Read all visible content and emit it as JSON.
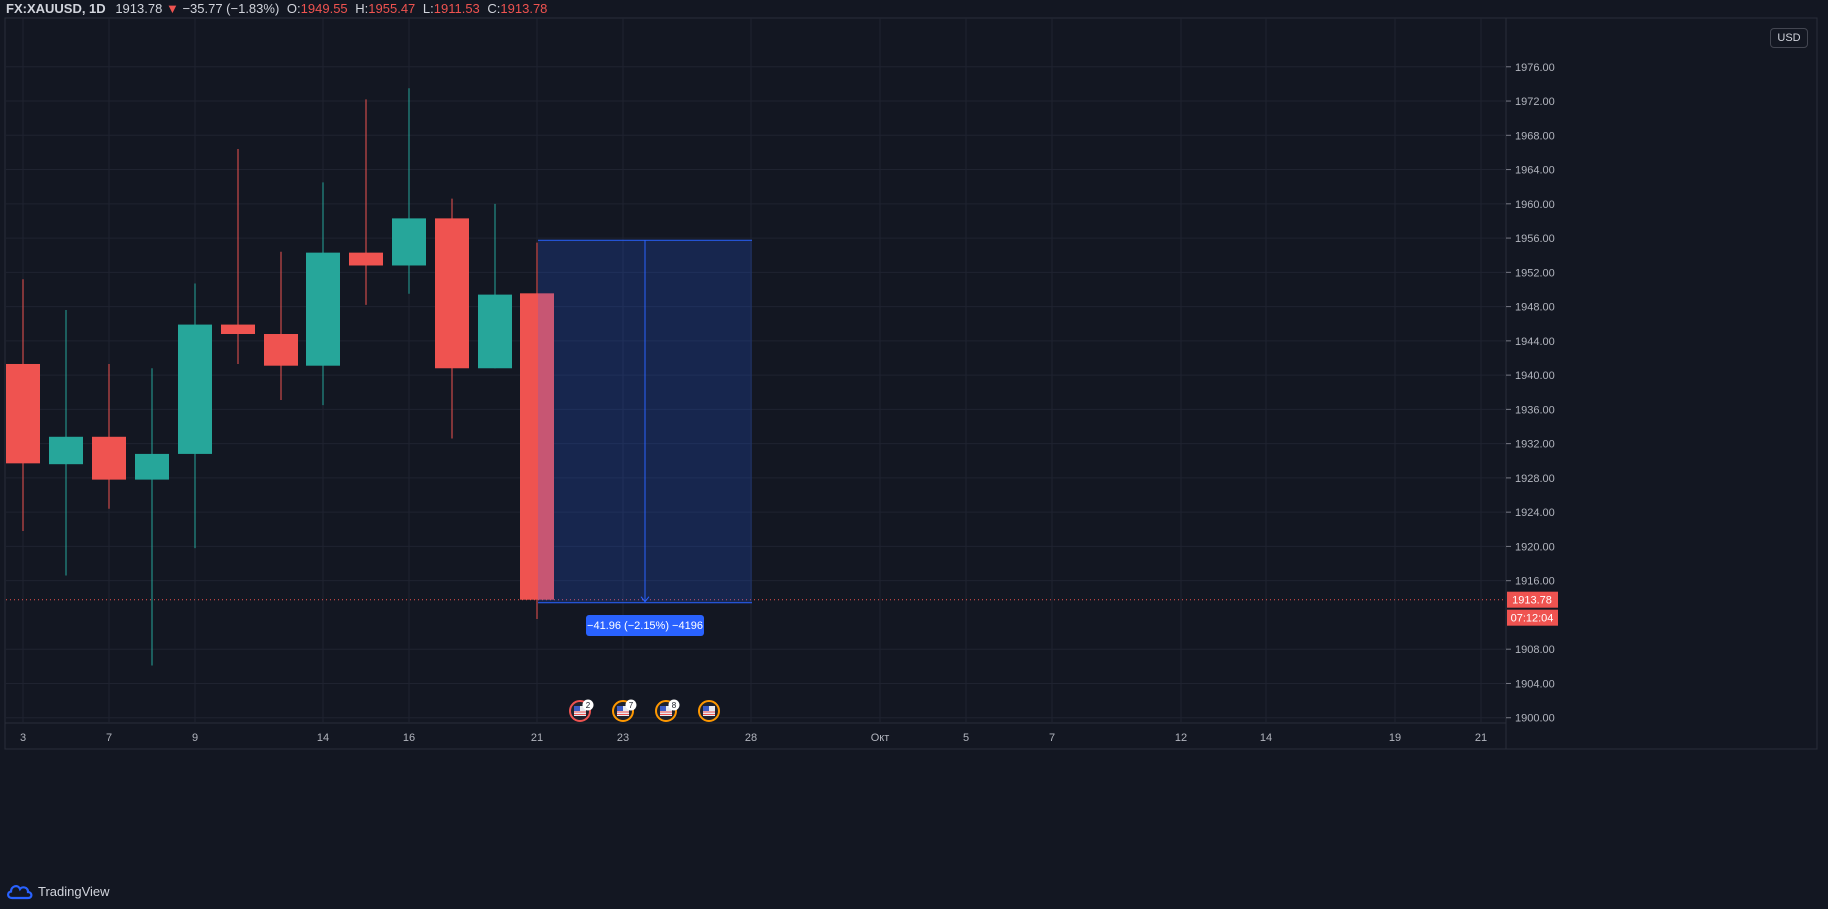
{
  "header": {
    "symbol": "FX:XAUUSD, 1D",
    "last": "1913.78",
    "change_arrow": "▼",
    "change": "−35.77 (−1.83%)",
    "o_label": "O:",
    "o_value": "1949.55",
    "h_label": "H:",
    "h_value": "1955.47",
    "l_label": "L:",
    "l_value": "1911.53",
    "c_label": "C:",
    "c_value": "1913.78"
  },
  "currency_badge": "USD",
  "brand": "TradingView",
  "price_axis": {
    "ticks": [
      "1976.00",
      "1972.00",
      "1968.00",
      "1964.00",
      "1960.00",
      "1956.00",
      "1952.00",
      "1948.00",
      "1944.00",
      "1940.00",
      "1936.00",
      "1932.00",
      "1928.00",
      "1924.00",
      "1920.00",
      "1916.00",
      "1908.00",
      "1904.00",
      "1900.00"
    ],
    "current_price_label": "1913.78",
    "countdown_label": "07:12:04"
  },
  "time_axis": {
    "labels": [
      "3",
      "7",
      "9",
      "14",
      "16",
      "21",
      "23",
      "28",
      "Окт",
      "5",
      "7",
      "12",
      "14",
      "19",
      "21"
    ]
  },
  "measure_tool": {
    "from": 1955.74,
    "to": 1913.78,
    "label": "−41.96 (−2.15%) −4196"
  },
  "events": [
    {
      "icon": "us-flag-event-icon",
      "count": "2",
      "ring": "#ef5350"
    },
    {
      "icon": "us-flag-event-icon",
      "count": "7",
      "ring": "#ff9800"
    },
    {
      "icon": "us-flag-event-icon",
      "count": "8",
      "ring": "#ff9800"
    },
    {
      "icon": "us-flag-event-icon",
      "count": "",
      "ring": "#ff9800"
    }
  ],
  "colors": {
    "background": "#131722",
    "up": "#26a69a",
    "down": "#ef5350",
    "grid": "#1f2330",
    "axis_text": "#b2b5be",
    "measure": "#2962ff"
  },
  "chart_data": {
    "type": "candlestick",
    "ylim": [
      1899.5,
      1980.0
    ],
    "candles": [
      {
        "date": "Sep 3",
        "open": 1941.3,
        "high": 1951.2,
        "low": 1921.8,
        "close": 1929.7
      },
      {
        "date": "Sep 4",
        "open": 1929.6,
        "high": 1947.6,
        "low": 1916.6,
        "close": 1932.8
      },
      {
        "date": "Sep 7",
        "open": 1932.8,
        "high": 1941.3,
        "low": 1924.4,
        "close": 1927.8
      },
      {
        "date": "Sep 8",
        "open": 1927.8,
        "high": 1940.8,
        "low": 1906.1,
        "close": 1930.8
      },
      {
        "date": "Sep 9",
        "open": 1930.8,
        "high": 1950.7,
        "low": 1919.8,
        "close": 1945.9
      },
      {
        "date": "Sep 10",
        "open": 1945.9,
        "high": 1966.4,
        "low": 1941.3,
        "close": 1944.8
      },
      {
        "date": "Sep 11",
        "open": 1944.8,
        "high": 1954.4,
        "low": 1937.1,
        "close": 1941.1
      },
      {
        "date": "Sep 14",
        "open": 1941.1,
        "high": 1962.5,
        "low": 1936.5,
        "close": 1954.3
      },
      {
        "date": "Sep 15",
        "open": 1954.3,
        "high": 1972.2,
        "low": 1948.2,
        "close": 1952.8
      },
      {
        "date": "Sep 16",
        "open": 1952.8,
        "high": 1973.5,
        "low": 1949.5,
        "close": 1958.3
      },
      {
        "date": "Sep 17",
        "open": 1958.3,
        "high": 1960.6,
        "low": 1932.6,
        "close": 1940.8
      },
      {
        "date": "Sep 18",
        "open": 1940.8,
        "high": 1960.0,
        "low": 1940.8,
        "close": 1949.4
      },
      {
        "date": "Sep 21",
        "open": 1949.55,
        "high": 1955.47,
        "low": 1911.53,
        "close": 1913.78
      }
    ]
  }
}
